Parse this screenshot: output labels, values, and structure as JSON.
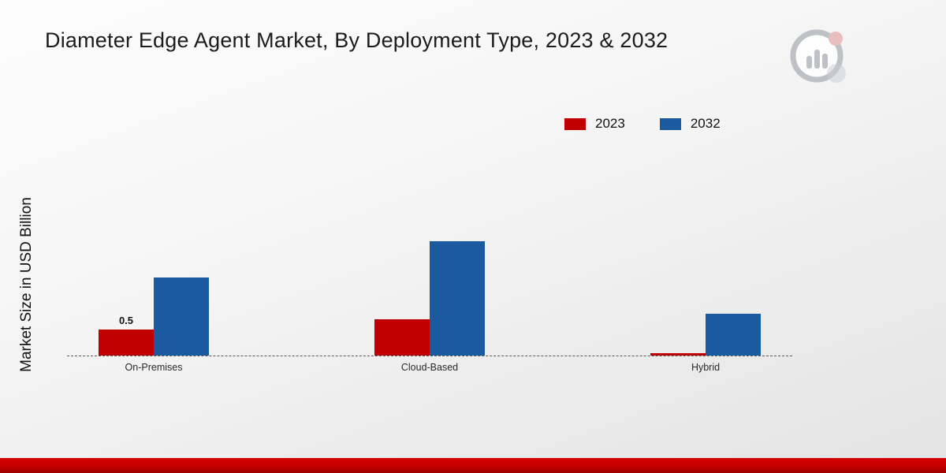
{
  "title": "Diameter Edge Agent Market, By Deployment Type, 2023 & 2032",
  "y_axis_label": "Market Size in USD Billion",
  "legend": [
    {
      "label": "2023",
      "color": "#c00000"
    },
    {
      "label": "2032",
      "color": "#1b5a9e"
    }
  ],
  "chart_data": {
    "type": "bar",
    "categories": [
      "On-Premises",
      "Cloud-Based",
      "Hybrid"
    ],
    "series": [
      {
        "name": "2023",
        "color": "#c00000",
        "values": [
          0.5,
          0.7,
          0.05
        ]
      },
      {
        "name": "2032",
        "color": "#1b5a9e",
        "values": [
          1.5,
          2.2,
          0.8
        ]
      }
    ],
    "annotations": [
      {
        "series": "2023",
        "category": "On-Premises",
        "text": "0.5"
      }
    ],
    "title": "Diameter Edge Agent Market, By Deployment Type, 2023 & 2032",
    "xlabel": "",
    "ylabel": "Market Size in USD Billion",
    "ylim": [
      0,
      2.5
    ],
    "grid": false,
    "legend_position": "top-right",
    "baseline_style": "dashed"
  }
}
